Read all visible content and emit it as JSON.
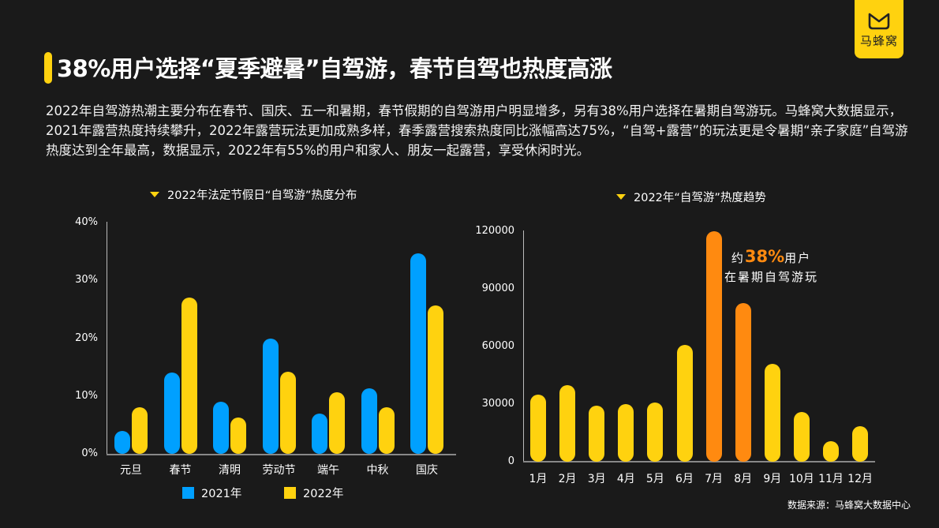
{
  "brand": {
    "logo_text": "马蜂窝",
    "color": "#ffd20f"
  },
  "header": {
    "title": "38%用户选择“夏季避暑”自驾游，春节自驾也热度高涨"
  },
  "description": "2022年自驾游热潮主要分布在春节、国庆、五一和暑期，春节假期的自驾游用户明显增多，另有38%用户选择在暑期自驾游玩。马蜂窝大数据显示，2021年露营热度持续攀升，2022年露营玩法更加成熟多样，春季露营搜索热度同比涨幅高达75%，“自驾+露营”的玩法更是令暑期“亲子家庭”自驾游热度达到全年最高，数据显示，2022年有55%的用户和家人、朋友一起露营，享受休闲时光。",
  "left_chart": {
    "title": "2022年法定节假日“自驾游”热度分布",
    "y_ticks": [
      "40%",
      "30%",
      "20%",
      "10%",
      "0%"
    ],
    "legend": [
      {
        "label": "2021年",
        "color": "#00a0ff"
      },
      {
        "label": "2022年",
        "color": "#ffd20f"
      }
    ]
  },
  "right_chart": {
    "title": "2022年“自驾游”热度趋势",
    "y_ticks": [
      "120000",
      "90000",
      "60000",
      "30000",
      "0"
    ],
    "annotation": {
      "prefix": "约",
      "highlight": "38%",
      "suffix": "用户",
      "line2": "在暑期自驾游玩"
    }
  },
  "source": "数据来源：马蜂窝大数据中心",
  "chart_data": [
    {
      "type": "bar",
      "title": "2022年法定节假日“自驾游”热度分布",
      "categories": [
        "元旦",
        "春节",
        "清明",
        "劳动节",
        "端午",
        "中秋",
        "国庆"
      ],
      "series": [
        {
          "name": "2021年",
          "color": "#00a0ff",
          "values": [
            4,
            14,
            9,
            20,
            7,
            11.3,
            34.7
          ]
        },
        {
          "name": "2022年",
          "color": "#ffd20f",
          "values": [
            8,
            27,
            6.3,
            14.2,
            10.7,
            8,
            25.7
          ]
        }
      ],
      "xlabel": "",
      "ylabel": "",
      "ylim": [
        0,
        40
      ],
      "yunit": "%",
      "legend_position": "bottom",
      "grid": false
    },
    {
      "type": "bar",
      "title": "2022年“自驾游”热度趋势",
      "categories": [
        "1月",
        "2月",
        "3月",
        "4月",
        "5月",
        "6月",
        "7月",
        "8月",
        "9月",
        "10月",
        "11月",
        "12月"
      ],
      "values": [
        35000,
        40000,
        29000,
        30000,
        31000,
        61000,
        120000,
        82500,
        51000,
        26000,
        10500,
        18500
      ],
      "highlight": [
        "7月",
        "8月"
      ],
      "colors": {
        "normal": "#ffd20f",
        "highlight": "#ff8a10"
      },
      "annotation": "约38%用户在暑期自驾游玩",
      "xlabel": "",
      "ylabel": "",
      "ylim": [
        0,
        120000
      ],
      "grid": false
    }
  ]
}
